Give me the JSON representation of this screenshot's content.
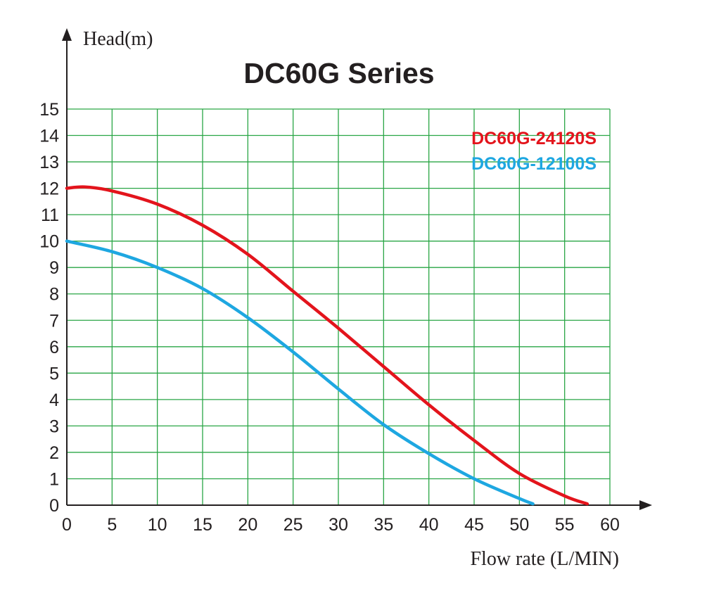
{
  "chart_data": {
    "type": "line",
    "title": "DC60G Series",
    "xlabel": "Flow rate (L/MIN)",
    "ylabel": "Head(m)",
    "xlim": [
      0,
      60
    ],
    "ylim": [
      0,
      15
    ],
    "x_ticks": [
      "0",
      "5",
      "10",
      "15",
      "20",
      "25",
      "30",
      "35",
      "40",
      "45",
      "50",
      "55",
      "60"
    ],
    "y_ticks": [
      "0",
      "1",
      "2",
      "3",
      "4",
      "5",
      "6",
      "7",
      "8",
      "9",
      "10",
      "11",
      "12",
      "13",
      "14",
      "15"
    ],
    "grid": true,
    "legend_position": "top-right",
    "series": [
      {
        "name": "DC60G-24120S",
        "color": "#e3141c",
        "x": [
          0,
          2,
          5,
          10,
          15,
          20,
          25,
          30,
          35,
          40,
          45,
          50,
          55,
          57.5
        ],
        "y": [
          12.0,
          12.05,
          11.9,
          11.4,
          10.6,
          9.5,
          8.1,
          6.7,
          5.25,
          3.8,
          2.45,
          1.2,
          0.35,
          0.05
        ]
      },
      {
        "name": "DC60G-12100S",
        "color": "#1ea7e1",
        "x": [
          0,
          5,
          10,
          15,
          20,
          25,
          30,
          35,
          40,
          45,
          50,
          51.5
        ],
        "y": [
          10.0,
          9.6,
          9.0,
          8.2,
          7.1,
          5.8,
          4.4,
          3.05,
          1.95,
          1.0,
          0.25,
          0.05
        ]
      }
    ]
  }
}
